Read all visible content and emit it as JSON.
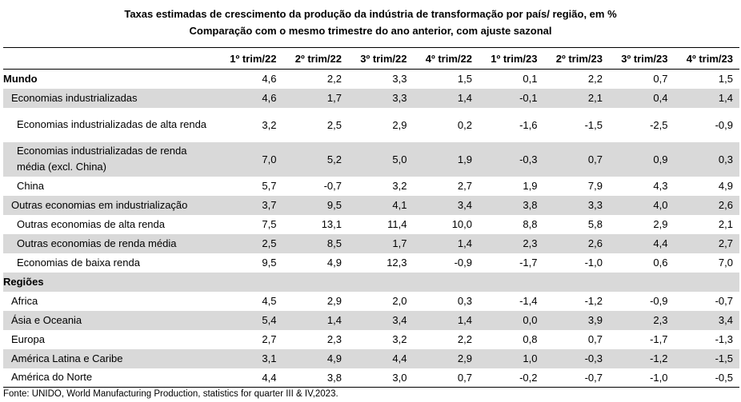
{
  "title_line1": "Taxas estimadas de crescimento da produção da indústria de transformação por país/ região, em %",
  "title_line2": "Comparação com o mesmo trimestre do ano anterior, com ajuste sazonal",
  "columns": [
    "1º trim/22",
    "2º trim/22",
    "3º trim/22",
    "4º trim/22",
    "1º trim/23",
    "2º trim/23",
    "3º trim/23",
    "4º trim/23"
  ],
  "rows": [
    {
      "label": "Mundo",
      "values": [
        "4,6",
        "2,2",
        "3,3",
        "1,5",
        "0,1",
        "2,2",
        "0,7",
        "1,5"
      ]
    },
    {
      "label": "Economias industrializadas",
      "values": [
        "4,6",
        "1,7",
        "3,3",
        "1,4",
        "-0,1",
        "2,1",
        "0,4",
        "1,4"
      ]
    },
    {
      "label": "Economias industrializadas de alta renda",
      "values": [
        "3,2",
        "2,5",
        "2,9",
        "0,2",
        "-1,6",
        "-1,5",
        "-2,5",
        "-0,9"
      ]
    },
    {
      "label": "Economias industrializadas de renda média (excl. China)",
      "values": [
        "7,0",
        "5,2",
        "5,0",
        "1,9",
        "-0,3",
        "0,7",
        "0,9",
        "0,3"
      ]
    },
    {
      "label": "China",
      "values": [
        "5,7",
        "-0,7",
        "3,2",
        "2,7",
        "1,9",
        "7,9",
        "4,3",
        "4,9"
      ]
    },
    {
      "label": "Outras economias em industrialização",
      "values": [
        "3,7",
        "9,5",
        "4,1",
        "3,4",
        "3,8",
        "3,3",
        "4,0",
        "2,6"
      ]
    },
    {
      "label": "Outras economias de alta renda",
      "values": [
        "7,5",
        "13,1",
        "11,4",
        "10,0",
        "8,8",
        "5,8",
        "2,9",
        "2,1"
      ]
    },
    {
      "label": "Outras economias de renda média",
      "values": [
        "2,5",
        "8,5",
        "1,7",
        "1,4",
        "2,3",
        "2,6",
        "4,4",
        "2,7"
      ]
    },
    {
      "label": "Economias de baixa renda",
      "values": [
        "9,5",
        "4,9",
        "12,3",
        "-0,9",
        "-1,7",
        "-1,0",
        "0,6",
        "7,0"
      ]
    },
    {
      "label": "Regiões",
      "values": [
        "",
        "",
        "",
        "",
        "",
        "",
        "",
        ""
      ]
    },
    {
      "label": "Africa",
      "values": [
        "4,5",
        "2,9",
        "2,0",
        "0,3",
        "-1,4",
        "-1,2",
        "-0,9",
        "-0,7"
      ]
    },
    {
      "label": "Ásia e Oceania",
      "values": [
        "5,4",
        "1,4",
        "3,4",
        "1,4",
        "0,0",
        "3,9",
        "2,3",
        "3,4"
      ]
    },
    {
      "label": "Europa",
      "values": [
        "2,7",
        "2,3",
        "3,2",
        "2,2",
        "0,8",
        "0,7",
        "-1,7",
        "-1,3"
      ]
    },
    {
      "label": "América Latina e Caribe",
      "values": [
        "3,1",
        "4,9",
        "4,4",
        "2,9",
        "1,0",
        "-0,3",
        "-1,2",
        "-1,5"
      ]
    },
    {
      "label": "América do Norte",
      "values": [
        "4,4",
        "3,8",
        "3,0",
        "0,7",
        "-0,2",
        "-0,7",
        "-1,0",
        "-0,5"
      ]
    }
  ],
  "footnote": "Fonte: UNIDO, World Manufacturing Production, statistics for quarter III & IV,2023."
}
